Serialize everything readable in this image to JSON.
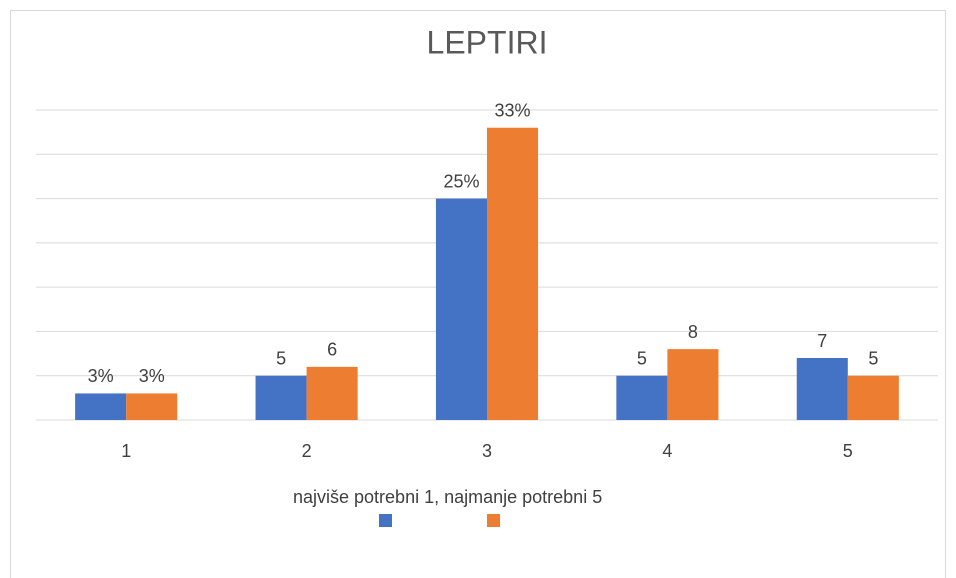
{
  "chart_data": {
    "type": "bar",
    "title": "LEPTIRI",
    "xlabel": "najviše potrebni 1, najmanje potrebni 5",
    "categories": [
      "1",
      "2",
      "3",
      "4",
      "5"
    ],
    "series": [
      {
        "color": "#4472c4",
        "values": [
          3,
          5,
          25,
          5,
          7
        ],
        "value_labels": [
          "3%",
          "5",
          "25%",
          "5",
          "7"
        ]
      },
      {
        "color": "#ed7d31",
        "values": [
          3,
          6,
          33,
          8,
          5
        ],
        "value_labels": [
          "3%",
          "6",
          "33%",
          "8",
          "5"
        ]
      }
    ],
    "ylim": [
      0,
      35
    ],
    "yticks": [
      0,
      5,
      10,
      15,
      20,
      25,
      30,
      35
    ],
    "grid": true
  }
}
